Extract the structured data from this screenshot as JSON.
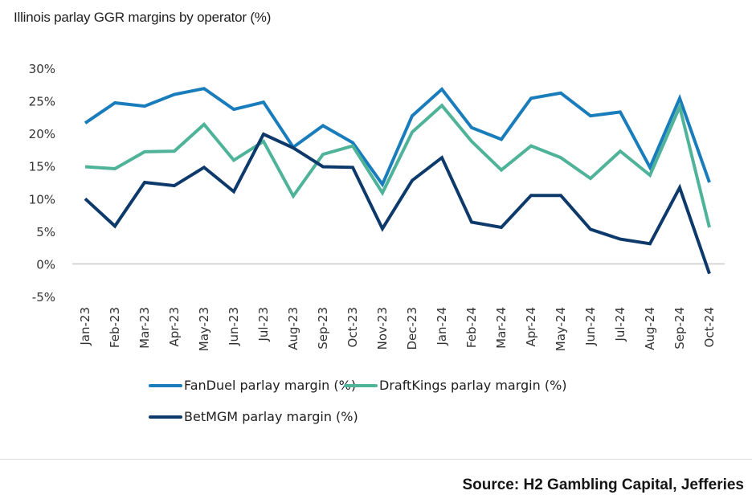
{
  "title": "Illinois parlay GGR margins by operator (%)",
  "source": "Source: H2 Gambling Capital, Jefferies",
  "chart_data": {
    "type": "line",
    "title": "Illinois parlay GGR margins by operator (%)",
    "xlabel": "",
    "ylabel": "",
    "ylim": [
      -5,
      30
    ],
    "yticks": [
      -5,
      0,
      5,
      10,
      15,
      20,
      25,
      30
    ],
    "ytick_labels": [
      "-5%",
      "0%",
      "5%",
      "10%",
      "15%",
      "20%",
      "25%",
      "30%"
    ],
    "grid": false,
    "zero_line": true,
    "legend_position": "bottom",
    "categories": [
      "Jan-23",
      "Feb-23",
      "Mar-23",
      "Apr-23",
      "May-23",
      "Jun-23",
      "Jul-23",
      "Aug-23",
      "Sep-23",
      "Oct-23",
      "Nov-23",
      "Dec-23",
      "Jan-24",
      "Feb-24",
      "Mar-24",
      "Apr-24",
      "May-24",
      "Jun-24",
      "Jul-24",
      "Aug-24",
      "Sep-24",
      "Oct-24"
    ],
    "series": [
      {
        "name": "FanDuel parlay margin (%)",
        "color": "#1a7dbb",
        "values": [
          21.6,
          24.7,
          24.2,
          26.0,
          26.9,
          23.7,
          24.8,
          17.9,
          21.2,
          18.6,
          12.2,
          22.7,
          26.8,
          20.9,
          19.1,
          25.4,
          26.2,
          22.7,
          23.3,
          14.8,
          25.4,
          12.5
        ]
      },
      {
        "name": "DraftKings parlay margin (%)",
        "color": "#4fb39a",
        "values": [
          14.9,
          14.6,
          17.2,
          17.3,
          21.4,
          15.9,
          18.8,
          10.4,
          16.8,
          18.1,
          10.9,
          20.2,
          24.3,
          18.8,
          14.4,
          18.1,
          16.3,
          13.1,
          17.3,
          13.6,
          24.1,
          5.6
        ]
      },
      {
        "name": "BetMGM parlay margin (%)",
        "color": "#0d3a6b",
        "values": [
          10.0,
          5.8,
          12.5,
          12.0,
          14.8,
          11.1,
          19.9,
          17.8,
          14.9,
          14.8,
          5.4,
          12.8,
          16.3,
          6.4,
          5.6,
          10.5,
          10.5,
          5.3,
          3.8,
          3.1,
          11.7,
          -1.5
        ]
      }
    ]
  }
}
